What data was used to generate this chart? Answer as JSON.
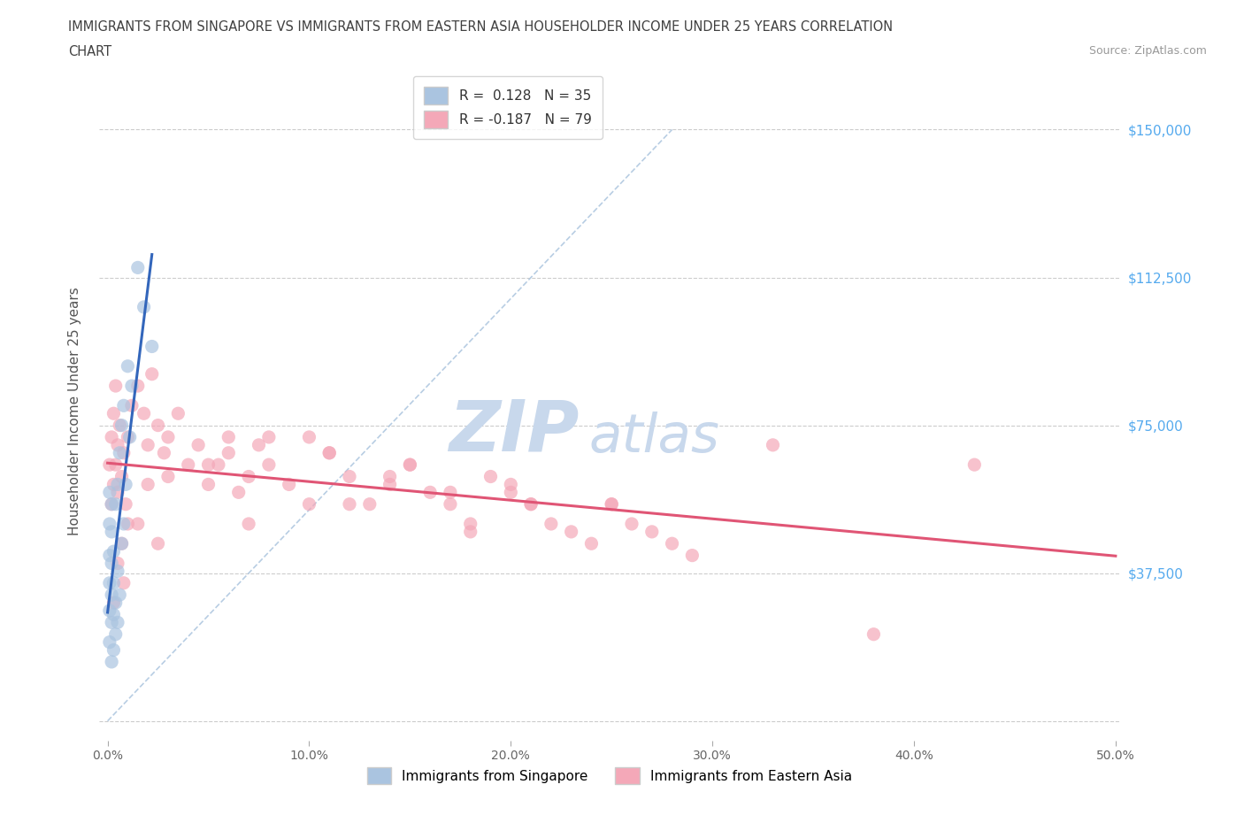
{
  "title_line1": "IMMIGRANTS FROM SINGAPORE VS IMMIGRANTS FROM EASTERN ASIA HOUSEHOLDER INCOME UNDER 25 YEARS CORRELATION",
  "title_line2": "CHART",
  "source": "Source: ZipAtlas.com",
  "ylabel": "Householder Income Under 25 years",
  "xlim": [
    -0.004,
    0.502
  ],
  "ylim": [
    -5000,
    162000
  ],
  "xticks": [
    0.0,
    0.1,
    0.2,
    0.3,
    0.4,
    0.5
  ],
  "xtick_labels": [
    "0.0%",
    "10.0%",
    "20.0%",
    "30.0%",
    "40.0%",
    "50.0%"
  ],
  "yticks": [
    0,
    37500,
    75000,
    112500,
    150000
  ],
  "ytick_labels": [
    "",
    "$37,500",
    "$75,000",
    "$112,500",
    "$150,000"
  ],
  "singapore_color": "#aac4e0",
  "eastern_asia_color": "#f4a8b8",
  "singapore_R": 0.128,
  "singapore_N": 35,
  "eastern_asia_R": -0.187,
  "eastern_asia_N": 79,
  "legend_label_singapore": "Immigrants from Singapore",
  "legend_label_eastern": "Immigrants from Eastern Asia",
  "sing_trend_color": "#3366bb",
  "east_trend_color": "#e05575",
  "diag_color": "#b0c8e0",
  "background_color": "#ffffff",
  "grid_color": "#cccccc",
  "title_color": "#404040",
  "source_color": "#999999",
  "watermark_zip_color": "#c8d8ec",
  "watermark_atlas_color": "#c8d8ec",
  "ytick_color": "#55aaee",
  "xtick_color": "#666666",
  "sing_x": [
    0.001,
    0.001,
    0.001,
    0.001,
    0.001,
    0.001,
    0.002,
    0.002,
    0.002,
    0.002,
    0.002,
    0.002,
    0.003,
    0.003,
    0.003,
    0.003,
    0.004,
    0.004,
    0.004,
    0.005,
    0.005,
    0.005,
    0.006,
    0.006,
    0.007,
    0.007,
    0.008,
    0.008,
    0.009,
    0.01,
    0.011,
    0.012,
    0.015,
    0.018,
    0.022
  ],
  "sing_y": [
    20000,
    28000,
    35000,
    42000,
    50000,
    58000,
    15000,
    25000,
    32000,
    40000,
    48000,
    55000,
    18000,
    27000,
    35000,
    43000,
    22000,
    30000,
    55000,
    25000,
    38000,
    60000,
    32000,
    68000,
    45000,
    75000,
    50000,
    80000,
    60000,
    90000,
    72000,
    85000,
    115000,
    105000,
    95000
  ],
  "east_x": [
    0.001,
    0.002,
    0.002,
    0.003,
    0.003,
    0.004,
    0.004,
    0.005,
    0.005,
    0.006,
    0.007,
    0.008,
    0.009,
    0.01,
    0.012,
    0.015,
    0.018,
    0.02,
    0.022,
    0.025,
    0.028,
    0.03,
    0.035,
    0.04,
    0.045,
    0.05,
    0.055,
    0.06,
    0.065,
    0.07,
    0.075,
    0.08,
    0.09,
    0.1,
    0.11,
    0.12,
    0.13,
    0.14,
    0.15,
    0.16,
    0.17,
    0.18,
    0.19,
    0.2,
    0.21,
    0.22,
    0.23,
    0.24,
    0.25,
    0.26,
    0.27,
    0.28,
    0.29,
    0.005,
    0.01,
    0.02,
    0.05,
    0.08,
    0.11,
    0.14,
    0.17,
    0.21,
    0.007,
    0.015,
    0.03,
    0.06,
    0.1,
    0.15,
    0.2,
    0.25,
    0.003,
    0.008,
    0.025,
    0.07,
    0.12,
    0.18,
    0.33,
    0.38,
    0.43
  ],
  "east_y": [
    65000,
    72000,
    55000,
    78000,
    60000,
    85000,
    65000,
    70000,
    58000,
    75000,
    62000,
    68000,
    55000,
    72000,
    80000,
    85000,
    78000,
    70000,
    88000,
    75000,
    68000,
    72000,
    78000,
    65000,
    70000,
    60000,
    65000,
    72000,
    58000,
    62000,
    70000,
    65000,
    60000,
    55000,
    68000,
    62000,
    55000,
    60000,
    65000,
    58000,
    55000,
    50000,
    62000,
    58000,
    55000,
    50000,
    48000,
    45000,
    55000,
    50000,
    48000,
    45000,
    42000,
    40000,
    50000,
    60000,
    65000,
    72000,
    68000,
    62000,
    58000,
    55000,
    45000,
    50000,
    62000,
    68000,
    72000,
    65000,
    60000,
    55000,
    30000,
    35000,
    45000,
    50000,
    55000,
    48000,
    70000,
    22000,
    65000
  ]
}
